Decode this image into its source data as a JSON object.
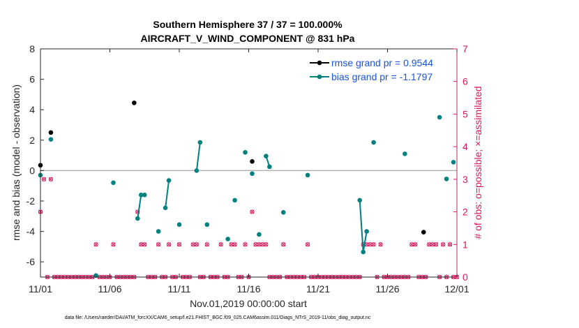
{
  "chart_data": {
    "type": "line",
    "title_line1": "Southern Hemisphere 37 / 37 = 100.000%",
    "title_line2": "AIRCRAFT_V_WIND_COMPONENT @ 831 hPa",
    "xlabel": "Nov.01,2019 00:00:00 start",
    "ylabel_left": "rmse and bias (model - observation)",
    "ylabel_right": "# of obs: o=possible; ×=assimilated",
    "xlim": [
      0,
      30
    ],
    "ylim_left": [
      -7,
      8
    ],
    "ylim_right": [
      0,
      7
    ],
    "x_ticks": [
      {
        "value": 0,
        "label": "11/01"
      },
      {
        "value": 5,
        "label": "11/06"
      },
      {
        "value": 10,
        "label": "11/11"
      },
      {
        "value": 15,
        "label": "11/16"
      },
      {
        "value": 20,
        "label": "11/21"
      },
      {
        "value": 25,
        "label": "11/26"
      },
      {
        "value": 30,
        "label": "12/01"
      }
    ],
    "y_ticks_left": [
      {
        "value": -6,
        "label": "-6"
      },
      {
        "value": -4,
        "label": "-4"
      },
      {
        "value": -2,
        "label": "-2"
      },
      {
        "value": 0,
        "label": "0"
      },
      {
        "value": 2,
        "label": "2"
      },
      {
        "value": 4,
        "label": "4"
      },
      {
        "value": 6,
        "label": "6"
      },
      {
        "value": 8,
        "label": "8"
      }
    ],
    "y_ticks_right": [
      {
        "value": 0,
        "label": "0"
      },
      {
        "value": 1,
        "label": "1"
      },
      {
        "value": 2,
        "label": "2"
      },
      {
        "value": 3,
        "label": "3"
      },
      {
        "value": 4,
        "label": "4"
      },
      {
        "value": 5,
        "label": "5"
      },
      {
        "value": 6,
        "label": "6"
      },
      {
        "value": 7,
        "label": "7"
      }
    ],
    "series": [
      {
        "name": "rmse grand pr = 0.9544",
        "color": "#000000",
        "segments": [
          [
            [
              0.0,
              0.35
            ]
          ],
          [
            [
              0.75,
              2.5
            ]
          ],
          [
            [
              6.75,
              4.45
            ]
          ],
          [
            [
              15.25,
              0.6
            ]
          ],
          [
            [
              27.6,
              -4.05
            ]
          ]
        ]
      },
      {
        "name": "bias grand pr = -1.1797",
        "color": "#00807f",
        "segments": [
          [
            [
              0.0,
              -0.3
            ]
          ],
          [
            [
              0.75,
              2.05
            ]
          ],
          [
            [
              4.0,
              -6.9
            ]
          ],
          [
            [
              5.25,
              -0.8
            ]
          ],
          [
            [
              7.0,
              -3.15
            ],
            [
              7.25,
              -1.6
            ],
            [
              7.5,
              -1.6
            ]
          ],
          [
            [
              8.5,
              -4.0
            ]
          ],
          [
            [
              9.0,
              -2.45
            ],
            [
              9.25,
              -0.65
            ]
          ],
          [
            [
              10.0,
              -3.55
            ]
          ],
          [
            [
              11.25,
              0.0
            ],
            [
              11.5,
              1.85
            ]
          ],
          [
            [
              12.0,
              -3.55
            ]
          ],
          [
            [
              13.5,
              -4.5
            ]
          ],
          [
            [
              14.0,
              -1.95
            ]
          ],
          [
            [
              14.75,
              1.2
            ]
          ],
          [
            [
              15.25,
              -0.2
            ]
          ],
          [
            [
              15.75,
              -4.2
            ]
          ],
          [
            [
              16.25,
              0.95
            ],
            [
              16.5,
              0.25
            ]
          ],
          [
            [
              17.5,
              -2.75
            ]
          ],
          [
            [
              19.25,
              -0.3
            ]
          ],
          [
            [
              23.0,
              -1.95
            ],
            [
              23.25,
              -5.35
            ],
            [
              23.5,
              -4.0
            ]
          ],
          [
            [
              24.0,
              1.85
            ]
          ],
          [
            [
              26.25,
              1.1
            ]
          ],
          [
            [
              28.75,
              3.5
            ]
          ],
          [
            [
              29.25,
              -0.55
            ]
          ],
          [
            [
              29.75,
              0.55
            ]
          ]
        ]
      },
      {
        "name": "# of obs possible",
        "color": "#d6195f",
        "x": [
          0.0,
          0.25,
          0.5,
          0.75,
          1.0,
          1.25,
          1.5,
          1.75,
          2.0,
          2.25,
          2.5,
          2.75,
          3.0,
          3.25,
          3.5,
          3.75,
          4.0,
          4.25,
          4.5,
          4.75,
          5.0,
          5.25,
          5.5,
          5.75,
          6.0,
          6.25,
          6.5,
          6.75,
          7.0,
          7.25,
          7.5,
          7.75,
          8.0,
          8.25,
          8.5,
          8.75,
          9.0,
          9.25,
          9.5,
          9.75,
          10.0,
          10.25,
          10.5,
          10.75,
          11.0,
          11.25,
          11.5,
          11.75,
          12.0,
          12.25,
          12.5,
          12.75,
          13.0,
          13.25,
          13.5,
          13.75,
          14.0,
          14.25,
          14.5,
          14.75,
          15.0,
          15.25,
          15.5,
          15.75,
          16.0,
          16.25,
          16.5,
          16.75,
          17.0,
          17.25,
          17.5,
          17.75,
          18.0,
          18.25,
          18.5,
          18.75,
          19.0,
          19.25,
          19.5,
          19.75,
          20.0,
          20.25,
          20.5,
          20.75,
          21.0,
          21.25,
          21.5,
          21.75,
          22.0,
          22.25,
          22.5,
          22.75,
          23.0,
          23.25,
          23.5,
          23.75,
          24.0,
          24.25,
          24.5,
          24.75,
          25.0,
          25.25,
          25.5,
          25.75,
          26.0,
          26.25,
          26.5,
          26.75,
          27.0,
          27.25,
          27.5,
          27.75,
          28.0,
          28.25,
          28.5,
          28.75,
          29.0,
          29.25,
          29.5,
          29.75,
          30.0
        ],
        "values": [
          2,
          3,
          0,
          3,
          0,
          0,
          0,
          0,
          0,
          0,
          0,
          0,
          0,
          0,
          0,
          0,
          1,
          0,
          0,
          0,
          0,
          1,
          0,
          0,
          0,
          0,
          0,
          0,
          2,
          1,
          1,
          0,
          0,
          0,
          1,
          0,
          0,
          1,
          0,
          0,
          1,
          0,
          0,
          0,
          1,
          1,
          0,
          0,
          1,
          0,
          0,
          0,
          1,
          0,
          0,
          1,
          1,
          0,
          0,
          1,
          0,
          2,
          1,
          1,
          1,
          1,
          0,
          0,
          0,
          0,
          1,
          0,
          0,
          0,
          0,
          0,
          0,
          1,
          0,
          0,
          0,
          0,
          0,
          0,
          0,
          0,
          0,
          0,
          0,
          0,
          0,
          0,
          0,
          1,
          1,
          1,
          1,
          0,
          1,
          0,
          0,
          0,
          0,
          0,
          0,
          0,
          0,
          1,
          1,
          0,
          0,
          0,
          1,
          1,
          1,
          0,
          1,
          0,
          1,
          0,
          0
        ]
      }
    ],
    "legend_location": "top-right",
    "footnote": "data file: /Users/raeder/DAI/ATM_forcXX/CAM6_setup/f.e21.FHIST_BGC.f09_025.CAM6assim.011/Diags_NTrS_2019-11/obs_diag_output.nc"
  }
}
